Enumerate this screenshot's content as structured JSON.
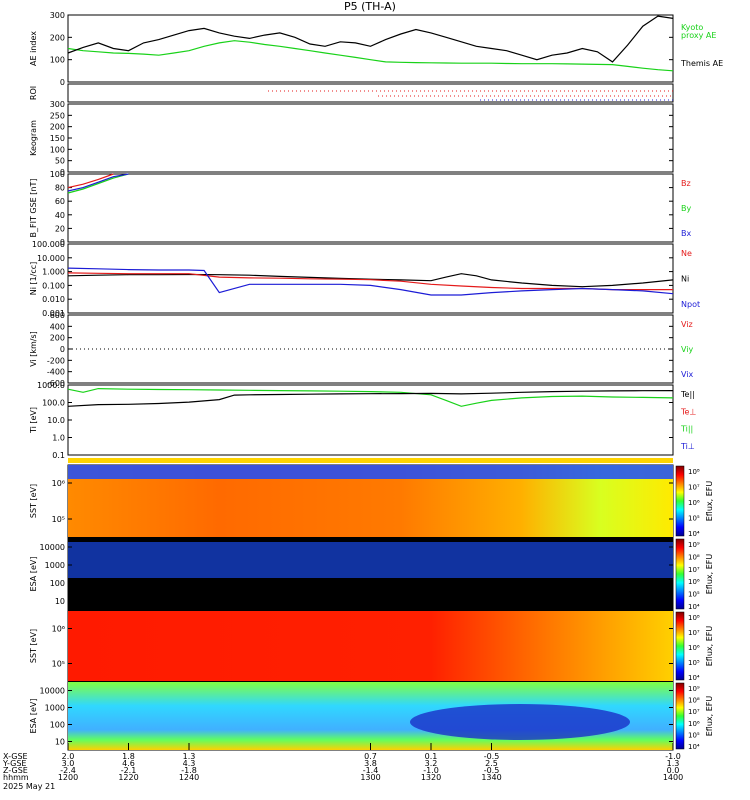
{
  "title": "P5 (TH-A)",
  "date_label": "2025 May 21",
  "colors": {
    "black": "#000000",
    "green": "#19d219",
    "red": "#e41a1a",
    "blue": "#1c1cd6",
    "yellow": "#ffd400",
    "orange": "#ff7a00",
    "cyan": "#17c7e8"
  },
  "chart_data": [
    {
      "id": "ae",
      "type": "line",
      "ylabel": "AE index",
      "ylim": [
        0,
        300
      ],
      "yticks": [
        "300",
        "200",
        "100",
        "0"
      ],
      "legend": [
        "Kyoto",
        "proxy AE",
        "Themis AE"
      ],
      "series": [
        {
          "name": "Kyoto proxy AE",
          "color": "green",
          "x": [
            1200,
            1205,
            1210,
            1215,
            1220,
            1225,
            1230,
            1235,
            1240,
            1245,
            1250,
            1255,
            1260,
            1265,
            1270,
            1275,
            1280,
            1285,
            1290,
            1295,
            1300,
            1305,
            1310,
            1315,
            1320,
            1325,
            1330,
            1335,
            1340,
            1345,
            1350,
            1355,
            1360,
            1365,
            1370,
            1375,
            1380,
            1385,
            1390,
            1395,
            1400
          ],
          "y": [
            150,
            140,
            135,
            130,
            128,
            125,
            120,
            130,
            140,
            160,
            175,
            185,
            178,
            168,
            160,
            150,
            140,
            130,
            120,
            110,
            100,
            90,
            88,
            87,
            86,
            85,
            84,
            84,
            84,
            83,
            82,
            82,
            82,
            81,
            80,
            79,
            78,
            70,
            62,
            55,
            50
          ]
        },
        {
          "name": "Themis AE",
          "color": "black",
          "x": [
            1200,
            1205,
            1210,
            1215,
            1220,
            1225,
            1230,
            1235,
            1240,
            1245,
            1250,
            1255,
            1260,
            1265,
            1270,
            1275,
            1280,
            1285,
            1290,
            1295,
            1300,
            1305,
            1310,
            1315,
            1320,
            1325,
            1330,
            1335,
            1340,
            1345,
            1350,
            1355,
            1360,
            1365,
            1370,
            1375,
            1380,
            1385,
            1390,
            1395,
            1400
          ],
          "y": [
            130,
            155,
            175,
            150,
            140,
            175,
            190,
            210,
            230,
            240,
            220,
            205,
            195,
            210,
            220,
            200,
            170,
            160,
            180,
            175,
            160,
            190,
            215,
            235,
            220,
            200,
            180,
            160,
            150,
            140,
            120,
            100,
            120,
            130,
            150,
            135,
            90,
            165,
            250,
            295,
            285
          ]
        }
      ]
    },
    {
      "id": "roi",
      "type": "line",
      "ylabel": "ROI"
    },
    {
      "id": "keogram",
      "type": "line",
      "ylabel": "Keogram",
      "ylim": [
        0,
        300
      ],
      "yticks": [
        "300",
        "250",
        "200",
        "150",
        "100",
        "50",
        "0"
      ]
    },
    {
      "id": "bfit",
      "type": "line",
      "ylabel": "B_FIT GSE [nT]",
      "ylim": [
        0,
        100
      ],
      "yticks": [
        "100",
        "80",
        "60",
        "40",
        "20",
        "0"
      ],
      "legend": [
        "Bz",
        "By",
        "Bx"
      ],
      "series": [
        {
          "name": "Bz",
          "color": "red",
          "x": [
            1200,
            1205,
            1210,
            1215
          ],
          "y": [
            80,
            85,
            92,
            100
          ]
        },
        {
          "name": "By",
          "color": "green",
          "x": [
            1200,
            1205,
            1210,
            1215,
            1220
          ],
          "y": [
            72,
            78,
            86,
            94,
            100
          ]
        },
        {
          "name": "Bx",
          "color": "blue",
          "x": [
            1200,
            1205,
            1210,
            1215,
            1220
          ],
          "y": [
            75,
            80,
            88,
            96,
            100
          ]
        }
      ]
    },
    {
      "id": "ni",
      "type": "line",
      "yscale": "log",
      "ylabel": "Ni [1/cc]",
      "ylim": [
        0.001,
        100
      ],
      "yticks": [
        "100.000",
        "10.000",
        "1.000",
        "0.100",
        "0.010",
        "0.001"
      ],
      "legend": [
        "Ne",
        "Ni",
        "Npot"
      ],
      "series": [
        {
          "name": "Ni",
          "color": "black",
          "x": [
            1200,
            1210,
            1220,
            1230,
            1240,
            1250,
            1260,
            1270,
            1280,
            1290,
            1300,
            1310,
            1320,
            1325,
            1330,
            1335,
            1340,
            1350,
            1360,
            1370,
            1380,
            1390,
            1400
          ],
          "y": [
            0.5,
            0.55,
            0.6,
            0.6,
            0.62,
            0.6,
            0.55,
            0.45,
            0.38,
            0.32,
            0.28,
            0.25,
            0.22,
            0.4,
            0.7,
            0.5,
            0.25,
            0.15,
            0.1,
            0.08,
            0.1,
            0.15,
            0.25
          ]
        },
        {
          "name": "Ne",
          "color": "red",
          "x": [
            1200,
            1210,
            1220,
            1230,
            1240,
            1250,
            1260,
            1270,
            1280,
            1290,
            1300,
            1310,
            1320,
            1330,
            1340,
            1350,
            1360,
            1370,
            1380,
            1390,
            1400
          ],
          "y": [
            0.8,
            0.75,
            0.7,
            0.7,
            0.7,
            0.4,
            0.35,
            0.33,
            0.3,
            0.28,
            0.26,
            0.2,
            0.12,
            0.09,
            0.07,
            0.06,
            0.06,
            0.06,
            0.05,
            0.05,
            0.05
          ]
        },
        {
          "name": "Npot",
          "color": "blue",
          "x": [
            1200,
            1210,
            1220,
            1230,
            1240,
            1245,
            1250,
            1260,
            1270,
            1280,
            1290,
            1300,
            1310,
            1320,
            1330,
            1340,
            1350,
            1360,
            1370,
            1380,
            1390,
            1400
          ],
          "y": [
            1.8,
            1.6,
            1.4,
            1.3,
            1.3,
            1.2,
            0.03,
            0.12,
            0.12,
            0.12,
            0.12,
            0.1,
            0.05,
            0.02,
            0.02,
            0.03,
            0.04,
            0.05,
            0.06,
            0.05,
            0.04,
            0.025
          ]
        }
      ]
    },
    {
      "id": "vi",
      "type": "line",
      "ylabel": "Vi [km/s]",
      "ylim": [
        -600,
        600
      ],
      "yticks": [
        "600",
        "400",
        "200",
        "0",
        "-200",
        "-400",
        "-600"
      ],
      "legend": [
        "Viz",
        "Viy",
        "Vix"
      ],
      "series": []
    },
    {
      "id": "ti",
      "type": "line",
      "yscale": "log",
      "ylabel": "Ti [eV]",
      "ylim": [
        0.1,
        10000
      ],
      "yticks": [
        "1000.0",
        "100.0",
        "10.0",
        "1.0",
        "0.1"
      ],
      "legend": [
        "Te||",
        "Te⊥",
        "Ti||",
        "Ti⊥"
      ],
      "series": [
        {
          "name": "Ti||",
          "color": "green",
          "x": [
            1200,
            1205,
            1210,
            1220,
            1230,
            1240,
            1250,
            1260,
            1270,
            1280,
            1290,
            1300,
            1310,
            1320,
            1325,
            1330,
            1335,
            1340,
            1350,
            1360,
            1370,
            1380,
            1390,
            1400
          ],
          "y": [
            5000,
            3000,
            5500,
            5000,
            4800,
            4600,
            4400,
            4200,
            4000,
            3800,
            3600,
            3400,
            3000,
            2000,
            800,
            300,
            500,
            800,
            1200,
            1500,
            1600,
            1400,
            1300,
            1200
          ]
        },
        {
          "name": "Te||",
          "color": "black",
          "x": [
            1200,
            1210,
            1220,
            1230,
            1240,
            1250,
            1255,
            1260,
            1270,
            1280,
            1290,
            1300,
            1310,
            1320,
            1330,
            1340,
            1350,
            1360,
            1370,
            1380,
            1390,
            1400
          ],
          "y": [
            300,
            400,
            420,
            480,
            600,
            900,
            1900,
            2000,
            2100,
            2200,
            2300,
            2400,
            2450,
            2500,
            2300,
            2600,
            3000,
            3400,
            3600,
            3800,
            3900,
            4000
          ]
        }
      ]
    },
    {
      "id": "sst_eflux",
      "type": "heatmap",
      "ylabel": "SST [eV]",
      "colorbar_label": "Eflux, EFU",
      "yticks": [
        "10⁶",
        "10⁵"
      ],
      "cticks": [
        "10⁸",
        "10⁷",
        "10⁶",
        "10⁵",
        "10⁴"
      ]
    },
    {
      "id": "esa_eflux",
      "type": "heatmap",
      "ylabel": "ESA [eV]",
      "colorbar_label": "Eflux, EFU",
      "yticks": [
        "10000",
        "1000",
        "100",
        "10"
      ],
      "cticks": [
        "10⁹",
        "10⁸",
        "10⁷",
        "10⁶",
        "10⁵",
        "10⁴"
      ]
    },
    {
      "id": "sst_eflux_2",
      "type": "heatmap",
      "ylabel": "SST [eV]",
      "colorbar_label": "Eflux, EFU",
      "yticks": [
        "10⁶",
        "10⁵"
      ],
      "cticks": [
        "10⁸",
        "10⁷",
        "10⁶",
        "10⁵",
        "10⁴"
      ]
    },
    {
      "id": "esa_eflux_2",
      "type": "heatmap",
      "ylabel": "ESA [eV]",
      "colorbar_label": "Eflux, EFU",
      "yticks": [
        "10000",
        "1000",
        "100",
        "10"
      ],
      "cticks": [
        "10⁹",
        "10⁸",
        "10⁷",
        "10⁶",
        "10⁵",
        "10⁴"
      ]
    }
  ],
  "x_axis": {
    "row_labels": [
      "X-GSE",
      "Y-GSE",
      "Z-GSE",
      "hhmm",
      "2025 May 21"
    ],
    "ticks": [
      {
        "x": 1200,
        "rows": [
          "2.0",
          "3.0",
          "-2.4",
          "1200"
        ]
      },
      {
        "x": 1220,
        "rows": [
          "1.8",
          "4.6",
          "-2.1",
          "1220"
        ]
      },
      {
        "x": 1240,
        "rows": [
          "1.3",
          "4.3",
          "-1.8",
          "1240"
        ]
      },
      {
        "x": 1300,
        "rows": [
          "0.7",
          "3.8",
          "-1.4",
          "1300"
        ]
      },
      {
        "x": 1320,
        "rows": [
          "0.1",
          "3.2",
          "-1.0",
          "1320"
        ]
      },
      {
        "x": 1340,
        "rows": [
          "-0.5",
          "2.5",
          "-0.5",
          "1340"
        ]
      },
      {
        "x": 1400,
        "rows": [
          "-1.0",
          "1.3",
          "0.0",
          "1400"
        ]
      }
    ]
  }
}
